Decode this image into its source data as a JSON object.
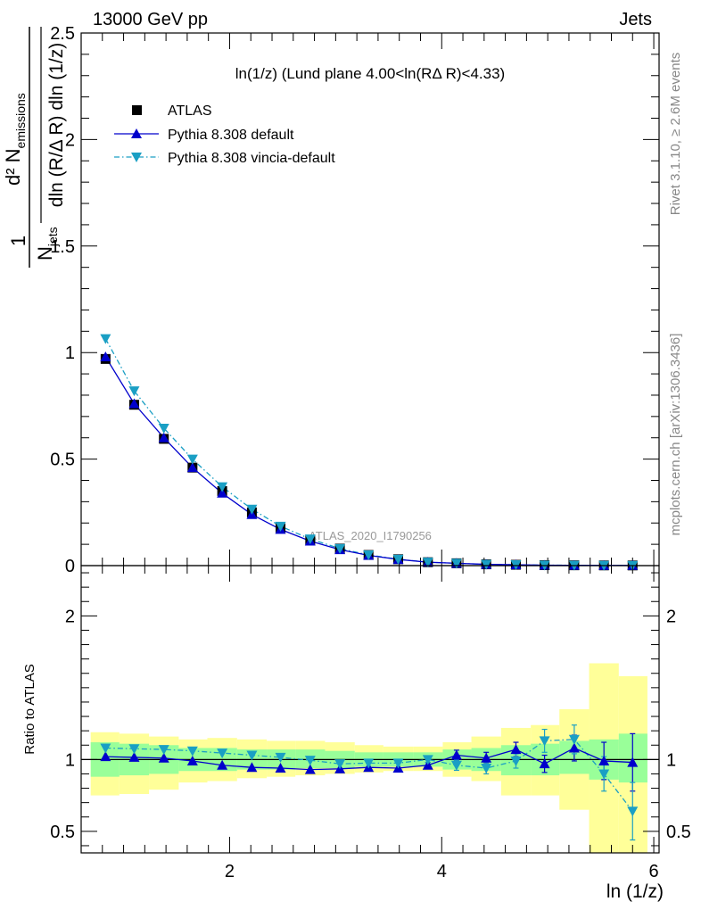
{
  "header": {
    "left": "13000 GeV pp",
    "right": "Jets"
  },
  "plot_title": "ln(1/z) (Lund plane 4.00<ln(RΔ R)<4.33)",
  "ylabel_main": "1/N_jets d² N_emissions / dln (R/Δ R) dln (1/z)",
  "ylabel_main_parts": {
    "one": "1",
    "d2": "d² N",
    "emissions": "emissions",
    "njets": "N",
    "jets": "jets",
    "denom": "dln (R/Δ R) dln (1/z)"
  },
  "ylabel_ratio": "Ratio to ATLAS",
  "xlabel": "ln (1/z)",
  "watermark": "ATLAS_2020_I1790256",
  "side_text_top": "Rivet 3.1.10, ≥ 2.6M events",
  "side_text_bottom": "mcplots.cern.ch [arXiv:1306.3436]",
  "colors": {
    "atlas": "#000000",
    "pythia_default": "#0000cc",
    "vincia": "#1a9fc4",
    "band_inner": "#99ff99",
    "band_outer": "#ffff99"
  },
  "chart_data": {
    "type": "scatter",
    "x_edges": [
      0.69,
      0.96,
      1.24,
      1.52,
      1.79,
      2.07,
      2.35,
      2.62,
      2.9,
      3.18,
      3.45,
      3.73,
      4.01,
      4.28,
      4.56,
      4.84,
      5.11,
      5.39,
      5.67,
      5.94
    ],
    "x": [
      0.83,
      1.1,
      1.38,
      1.65,
      1.93,
      2.21,
      2.48,
      2.76,
      3.04,
      3.31,
      3.59,
      3.87,
      4.14,
      4.42,
      4.7,
      4.97,
      5.25,
      5.53,
      5.8
    ],
    "series": [
      {
        "name": "ATLAS",
        "marker": "square",
        "values": [
          0.97,
          0.755,
          0.595,
          0.46,
          0.35,
          0.25,
          0.175,
          0.12,
          0.08,
          0.05,
          0.03,
          0.016,
          0.011,
          0.006,
          0.004,
          0.002,
          0.0015,
          0.001,
          0.0008
        ]
      },
      {
        "name": "Pythia 8.308 default",
        "marker": "triangle-up",
        "line": "solid",
        "values": [
          0.98,
          0.76,
          0.6,
          0.46,
          0.34,
          0.24,
          0.17,
          0.115,
          0.075,
          0.048,
          0.029,
          0.016,
          0.011,
          0.006,
          0.004,
          0.002,
          0.0016,
          0.001,
          0.0008
        ],
        "ratio": [
          1.02,
          1.015,
          1.01,
          0.99,
          0.96,
          0.945,
          0.94,
          0.93,
          0.935,
          0.945,
          0.94,
          0.96,
          1.03,
          1.01,
          1.07,
          0.97,
          1.08,
          0.99,
          0.98
        ],
        "ratio_err": [
          0.005,
          0.005,
          0.005,
          0.005,
          0.005,
          0.005,
          0.006,
          0.007,
          0.008,
          0.01,
          0.012,
          0.02,
          0.035,
          0.04,
          0.05,
          0.06,
          0.09,
          0.13,
          0.2
        ]
      },
      {
        "name": "Pythia 8.308 vincia-default",
        "marker": "triangle-down",
        "line": "dashdot",
        "values": [
          1.065,
          0.82,
          0.645,
          0.5,
          0.37,
          0.265,
          0.185,
          0.125,
          0.08,
          0.05,
          0.03,
          0.016,
          0.011,
          0.006,
          0.004,
          0.0022,
          0.0018,
          0.0009,
          0.0006
        ],
        "ratio": [
          1.08,
          1.075,
          1.07,
          1.06,
          1.045,
          1.03,
          1.015,
          0.995,
          0.97,
          0.975,
          0.975,
          1.0,
          0.96,
          0.94,
          0.99,
          1.13,
          1.14,
          0.9,
          0.64
        ],
        "ratio_err": [
          0.005,
          0.005,
          0.005,
          0.005,
          0.005,
          0.005,
          0.006,
          0.007,
          0.008,
          0.01,
          0.012,
          0.02,
          0.035,
          0.04,
          0.05,
          0.08,
          0.1,
          0.12,
          0.2
        ]
      }
    ],
    "ratio_band_inner": [
      [
        0.88,
        1.12
      ],
      [
        0.89,
        1.11
      ],
      [
        0.9,
        1.1
      ],
      [
        0.92,
        1.08
      ],
      [
        0.92,
        1.08
      ],
      [
        0.93,
        1.07
      ],
      [
        0.93,
        1.07
      ],
      [
        0.94,
        1.07
      ],
      [
        0.94,
        1.06
      ],
      [
        0.95,
        1.05
      ],
      [
        0.95,
        1.05
      ],
      [
        0.95,
        1.05
      ],
      [
        0.93,
        1.07
      ],
      [
        0.92,
        1.08
      ],
      [
        0.89,
        1.1
      ],
      [
        0.89,
        1.11
      ],
      [
        0.9,
        1.13
      ],
      [
        0.86,
        1.14
      ],
      [
        0.84,
        1.18
      ]
    ],
    "ratio_band_outer": [
      [
        0.75,
        1.19
      ],
      [
        0.76,
        1.18
      ],
      [
        0.79,
        1.16
      ],
      [
        0.84,
        1.14
      ],
      [
        0.85,
        1.15
      ],
      [
        0.87,
        1.14
      ],
      [
        0.88,
        1.13
      ],
      [
        0.89,
        1.13
      ],
      [
        0.9,
        1.12
      ],
      [
        0.91,
        1.1
      ],
      [
        0.92,
        1.09
      ],
      [
        0.92,
        1.09
      ],
      [
        0.88,
        1.12
      ],
      [
        0.85,
        1.16
      ],
      [
        0.75,
        1.22
      ],
      [
        0.75,
        1.24
      ],
      [
        0.65,
        1.35
      ],
      [
        0.35,
        1.67
      ],
      [
        0.35,
        1.58
      ],
      [
        0.62,
        1.45
      ]
    ],
    "xlim": [
      0.6,
      6.05
    ],
    "ylim_main": [
      0,
      2.5
    ],
    "ylim_ratio": [
      0.35,
      2.35
    ],
    "x_ticks": [
      2,
      4,
      6
    ],
    "y_ticks_main": [
      0,
      0.5,
      1,
      1.5,
      2,
      2.5
    ],
    "y_ticks_ratio": [
      0.5,
      1,
      2
    ],
    "legend": "top-left"
  }
}
